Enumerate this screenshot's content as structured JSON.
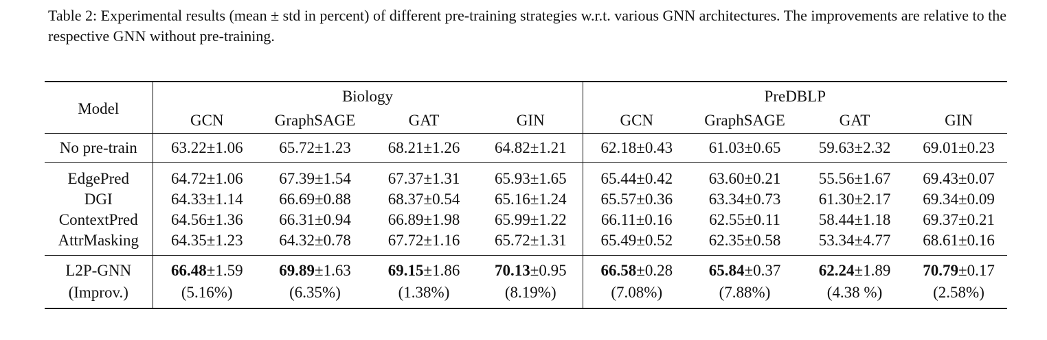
{
  "caption": "Table 2: Experimental results (mean ± std in percent) of different pre-training strategies w.r.t. various GNN architectures. The improvements are relative to the respective GNN without pre-training.",
  "header": {
    "model": "Model",
    "groups": [
      "Biology",
      "PreDBLP"
    ],
    "columns": [
      "GCN",
      "GraphSAGE",
      "GAT",
      "GIN",
      "GCN",
      "GraphSAGE",
      "GAT",
      "GIN"
    ]
  },
  "pm": "±",
  "baseline": {
    "model": "No pre-train",
    "cells": [
      [
        "63.22",
        "1.06"
      ],
      [
        "65.72",
        "1.23"
      ],
      [
        "68.21",
        "1.26"
      ],
      [
        "64.82",
        "1.21"
      ],
      [
        "62.18",
        "0.43"
      ],
      [
        "61.03",
        "0.65"
      ],
      [
        "59.63",
        "2.32"
      ],
      [
        "69.01",
        "0.23"
      ]
    ]
  },
  "rows": [
    {
      "model": "EdgePred",
      "cells": [
        [
          "64.72",
          "1.06"
        ],
        [
          "67.39",
          "1.54"
        ],
        [
          "67.37",
          "1.31"
        ],
        [
          "65.93",
          "1.65"
        ],
        [
          "65.44",
          "0.42"
        ],
        [
          "63.60",
          "0.21"
        ],
        [
          "55.56",
          "1.67"
        ],
        [
          "69.43",
          "0.07"
        ]
      ]
    },
    {
      "model": "DGI",
      "cells": [
        [
          "64.33",
          "1.14"
        ],
        [
          "66.69",
          "0.88"
        ],
        [
          "68.37",
          "0.54"
        ],
        [
          "65.16",
          "1.24"
        ],
        [
          "65.57",
          "0.36"
        ],
        [
          "63.34",
          "0.73"
        ],
        [
          "61.30",
          "2.17"
        ],
        [
          "69.34",
          "0.09"
        ]
      ]
    },
    {
      "model": "ContextPred",
      "cells": [
        [
          "64.56",
          "1.36"
        ],
        [
          "66.31",
          "0.94"
        ],
        [
          "66.89",
          "1.98"
        ],
        [
          "65.99",
          "1.22"
        ],
        [
          "66.11",
          "0.16"
        ],
        [
          "62.55",
          "0.11"
        ],
        [
          "58.44",
          "1.18"
        ],
        [
          "69.37",
          "0.21"
        ]
      ]
    },
    {
      "model": "AttrMasking",
      "cells": [
        [
          "64.35",
          "1.23"
        ],
        [
          "64.32",
          "0.78"
        ],
        [
          "67.72",
          "1.16"
        ],
        [
          "65.72",
          "1.31"
        ],
        [
          "65.49",
          "0.52"
        ],
        [
          "62.35",
          "0.58"
        ],
        [
          "53.34",
          "4.77"
        ],
        [
          "68.61",
          "0.16"
        ]
      ]
    }
  ],
  "ours": {
    "model": "L2P-GNN",
    "cells": [
      [
        "66.48",
        "1.59"
      ],
      [
        "69.89",
        "1.63"
      ],
      [
        "69.15",
        "1.86"
      ],
      [
        "70.13",
        "0.95"
      ],
      [
        "66.58",
        "0.28"
      ],
      [
        "65.84",
        "0.37"
      ],
      [
        "62.24",
        "1.89"
      ],
      [
        "70.79",
        "0.17"
      ]
    ],
    "improv_label": "(Improv.)",
    "improv": [
      "(5.16%)",
      "(6.35%)",
      "(1.38%)",
      "(8.19%)",
      "(7.08%)",
      "(7.88%)",
      "(4.38 %)",
      "(2.58%)"
    ]
  }
}
